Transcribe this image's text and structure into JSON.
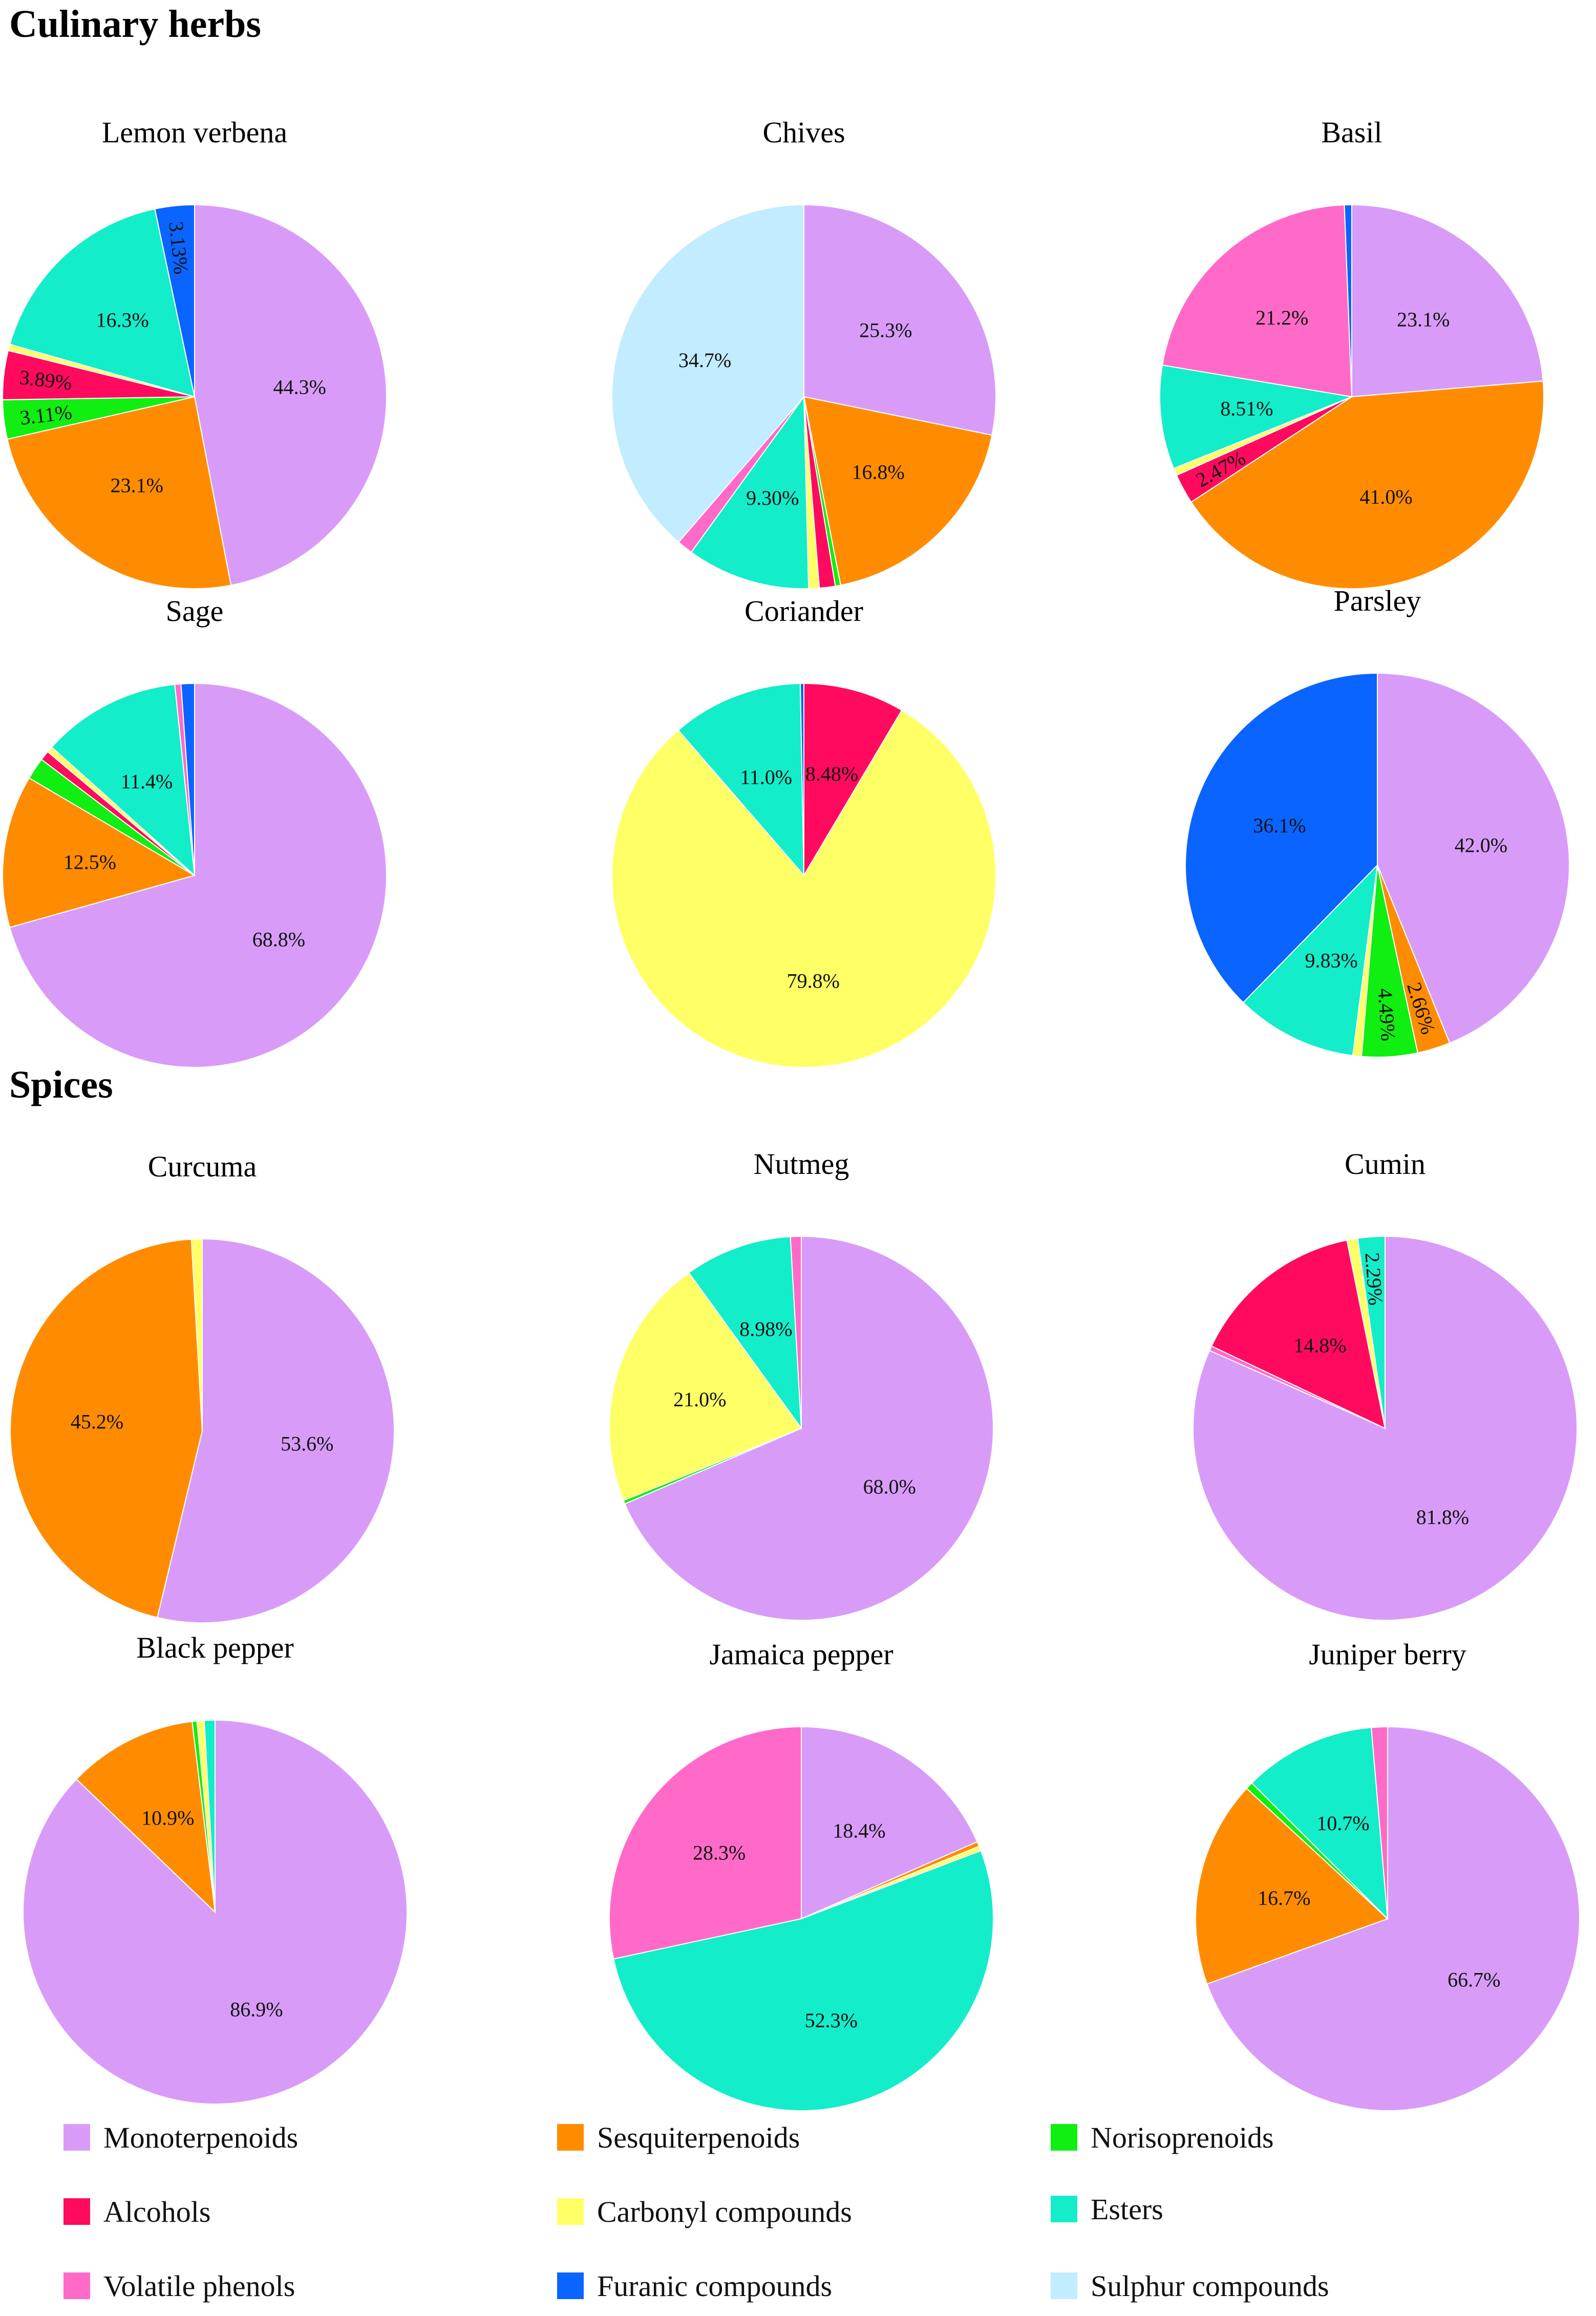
{
  "sections": {
    "culinary": "Culinary herbs",
    "spices": "Spices"
  },
  "categories": [
    "Monoterpenoids",
    "Sesquiterpenoids",
    "Norisoprenoids",
    "Alcohols",
    "Carbonyl compounds",
    "Esters",
    "Volatile phenols",
    "Furanic compounds",
    "Sulphur compounds"
  ],
  "colors": {
    "Monoterpenoids": "#d89cf8",
    "Sesquiterpenoids": "#ff8c00",
    "Norisoprenoids": "#11ee11",
    "Alcohols": "#ff0a5e",
    "Carbonyl compounds": "#ffff66",
    "Esters": "#13edc9",
    "Volatile phenols": "#ff6ac8",
    "Furanic compounds": "#0a64ff",
    "Sulphur compounds": "#c2ecff"
  },
  "legend": [
    "Monoterpenoids",
    "Sesquiterpenoids",
    "Norisoprenoids",
    "Alcohols",
    "Carbonyl compounds",
    "Esters",
    "Volatile phenols",
    "Furanic compounds",
    "Sulphur compounds"
  ],
  "chart_data": [
    {
      "type": "pie",
      "title": "Lemon verbena",
      "slices": [
        {
          "name": "Monoterpenoids",
          "value": 44.3,
          "label": "44.3%"
        },
        {
          "name": "Sesquiterpenoids",
          "value": 23.1,
          "label": "23.1%"
        },
        {
          "name": "Norisoprenoids",
          "value": 3.11,
          "label": "3.11%"
        },
        {
          "name": "Alcohols",
          "value": 3.89,
          "label": "3.89%"
        },
        {
          "name": "Carbonyl compounds",
          "value": 0.5,
          "label": ""
        },
        {
          "name": "Esters",
          "value": 16.3,
          "label": "16.3%"
        },
        {
          "name": "Furanic compounds",
          "value": 3.13,
          "label": "3.13%"
        }
      ]
    },
    {
      "type": "pie",
      "title": "Chives",
      "slices": [
        {
          "name": "Monoterpenoids",
          "value": 25.3,
          "label": "25.3%"
        },
        {
          "name": "Sesquiterpenoids",
          "value": 16.8,
          "label": "16.8%"
        },
        {
          "name": "Norisoprenoids",
          "value": 0.4,
          "label": ""
        },
        {
          "name": "Alcohols",
          "value": 1.2,
          "label": ""
        },
        {
          "name": "Carbonyl compounds",
          "value": 0.8,
          "label": ""
        },
        {
          "name": "Esters",
          "value": 9.3,
          "label": "9.30%"
        },
        {
          "name": "Volatile phenols",
          "value": 1.2,
          "label": ""
        },
        {
          "name": "Sulphur compounds",
          "value": 34.7,
          "label": "34.7%"
        }
      ]
    },
    {
      "type": "pie",
      "title": "Basil",
      "slices": [
        {
          "name": "Monoterpenoids",
          "value": 23.1,
          "label": "23.1%"
        },
        {
          "name": "Sesquiterpenoids",
          "value": 41.0,
          "label": "41.0%"
        },
        {
          "name": "Alcohols",
          "value": 2.47,
          "label": "2.47%"
        },
        {
          "name": "Carbonyl compounds",
          "value": 0.6,
          "label": ""
        },
        {
          "name": "Esters",
          "value": 8.51,
          "label": "8.51%"
        },
        {
          "name": "Volatile phenols",
          "value": 21.2,
          "label": "21.2%"
        },
        {
          "name": "Furanic compounds",
          "value": 0.6,
          "label": ""
        }
      ]
    },
    {
      "type": "pie",
      "title": "Sage",
      "slices": [
        {
          "name": "Monoterpenoids",
          "value": 68.8,
          "label": "68.8%"
        },
        {
          "name": "Sesquiterpenoids",
          "value": 12.5,
          "label": "12.5%"
        },
        {
          "name": "Norisoprenoids",
          "value": 1.8,
          "label": ""
        },
        {
          "name": "Alcohols",
          "value": 0.8,
          "label": ""
        },
        {
          "name": "Carbonyl compounds",
          "value": 0.5,
          "label": ""
        },
        {
          "name": "Esters",
          "value": 11.4,
          "label": "11.4%"
        },
        {
          "name": "Volatile phenols",
          "value": 0.5,
          "label": ""
        },
        {
          "name": "Furanic compounds",
          "value": 1.1,
          "label": ""
        }
      ]
    },
    {
      "type": "pie",
      "title": "Coriander",
      "slices": [
        {
          "name": "Alcohols",
          "value": 8.48,
          "label": "8.48%"
        },
        {
          "name": "Carbonyl compounds",
          "value": 79.8,
          "label": "79.8%"
        },
        {
          "name": "Esters",
          "value": 11.0,
          "label": "11.0%"
        },
        {
          "name": "Furanic compounds",
          "value": 0.3,
          "label": ""
        }
      ]
    },
    {
      "type": "pie",
      "title": "Parsley",
      "slices": [
        {
          "name": "Monoterpenoids",
          "value": 42.0,
          "label": "42.0%"
        },
        {
          "name": "Sesquiterpenoids",
          "value": 2.66,
          "label": "2.66%"
        },
        {
          "name": "Norisoprenoids",
          "value": 4.49,
          "label": "4.49%"
        },
        {
          "name": "Carbonyl compounds",
          "value": 0.7,
          "label": ""
        },
        {
          "name": "Esters",
          "value": 9.83,
          "label": "9.83%"
        },
        {
          "name": "Furanic compounds",
          "value": 36.1,
          "label": "36.1%"
        }
      ]
    },
    {
      "type": "pie",
      "title": "Curcuma",
      "slices": [
        {
          "name": "Monoterpenoids",
          "value": 53.6,
          "label": "53.6%"
        },
        {
          "name": "Sesquiterpenoids",
          "value": 45.2,
          "label": "45.2%"
        },
        {
          "name": "Carbonyl compounds",
          "value": 0.9,
          "label": ""
        }
      ]
    },
    {
      "type": "pie",
      "title": "Nutmeg",
      "slices": [
        {
          "name": "Monoterpenoids",
          "value": 68.0,
          "label": "68.0%"
        },
        {
          "name": "Norisoprenoids",
          "value": 0.3,
          "label": ""
        },
        {
          "name": "Carbonyl compounds",
          "value": 21.0,
          "label": "21.0%"
        },
        {
          "name": "Esters",
          "value": 8.98,
          "label": "8.98%"
        },
        {
          "name": "Volatile phenols",
          "value": 0.9,
          "label": ""
        }
      ]
    },
    {
      "type": "pie",
      "title": "Cumin",
      "slices": [
        {
          "name": "Monoterpenoids",
          "value": 81.8,
          "label": "81.8%"
        },
        {
          "name": "Volatile phenols",
          "value": 0.4,
          "label": ""
        },
        {
          "name": "Alcohols",
          "value": 14.8,
          "label": "14.8%"
        },
        {
          "name": "Carbonyl compounds",
          "value": 0.9,
          "label": ""
        },
        {
          "name": "Esters",
          "value": 2.29,
          "label": "2.29%"
        }
      ]
    },
    {
      "type": "pie",
      "title": "Black pepper",
      "slices": [
        {
          "name": "Monoterpenoids",
          "value": 86.9,
          "label": "86.9%"
        },
        {
          "name": "Sesquiterpenoids",
          "value": 10.9,
          "label": "10.9%"
        },
        {
          "name": "Norisoprenoids",
          "value": 0.4,
          "label": ""
        },
        {
          "name": "Carbonyl compounds",
          "value": 0.6,
          "label": ""
        },
        {
          "name": "Esters",
          "value": 0.9,
          "label": ""
        }
      ]
    },
    {
      "type": "pie",
      "title": "Jamaica pepper",
      "slices": [
        {
          "name": "Monoterpenoids",
          "value": 18.4,
          "label": "18.4%"
        },
        {
          "name": "Sesquiterpenoids",
          "value": 0.4,
          "label": ""
        },
        {
          "name": "Carbonyl compounds",
          "value": 0.4,
          "label": ""
        },
        {
          "name": "Esters",
          "value": 52.3,
          "label": "52.3%"
        },
        {
          "name": "Volatile phenols",
          "value": 28.3,
          "label": "28.3%"
        }
      ]
    },
    {
      "type": "pie",
      "title": "Juniper berry",
      "slices": [
        {
          "name": "Monoterpenoids",
          "value": 66.7,
          "label": "66.7%"
        },
        {
          "name": "Sesquiterpenoids",
          "value": 16.7,
          "label": "16.7%"
        },
        {
          "name": "Norisoprenoids",
          "value": 0.6,
          "label": ""
        },
        {
          "name": "Esters",
          "value": 10.7,
          "label": "10.7%"
        },
        {
          "name": "Volatile phenols",
          "value": 1.3,
          "label": ""
        }
      ]
    }
  ]
}
